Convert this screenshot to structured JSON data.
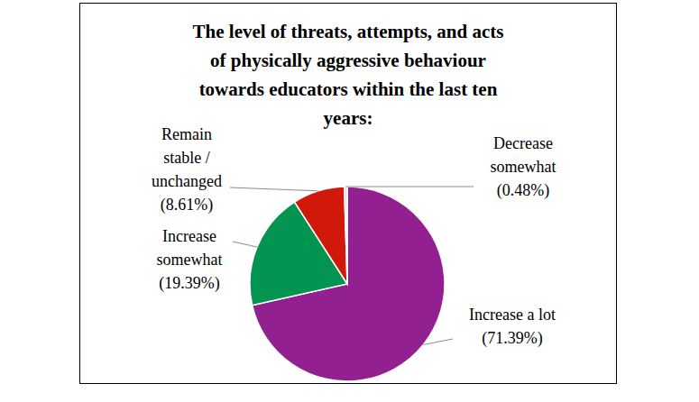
{
  "chart_data": {
    "type": "pie",
    "title": "The level of threats, attempts, and acts of physically aggressive behaviour towards educators within the last ten years:",
    "categories": [
      "Increase a lot",
      "Increase somewhat",
      "Remain stable / unchanged",
      "Decrease somewhat"
    ],
    "values": [
      71.39,
      19.39,
      8.61,
      0.48
    ],
    "value_labels": [
      "(71.39%)",
      "(19.39%)",
      "(8.61%)",
      "(0.48%)"
    ],
    "colors": [
      "#932091",
      "#049452",
      "#d0190b",
      "#e0e0e0"
    ],
    "data_labels": true
  }
}
